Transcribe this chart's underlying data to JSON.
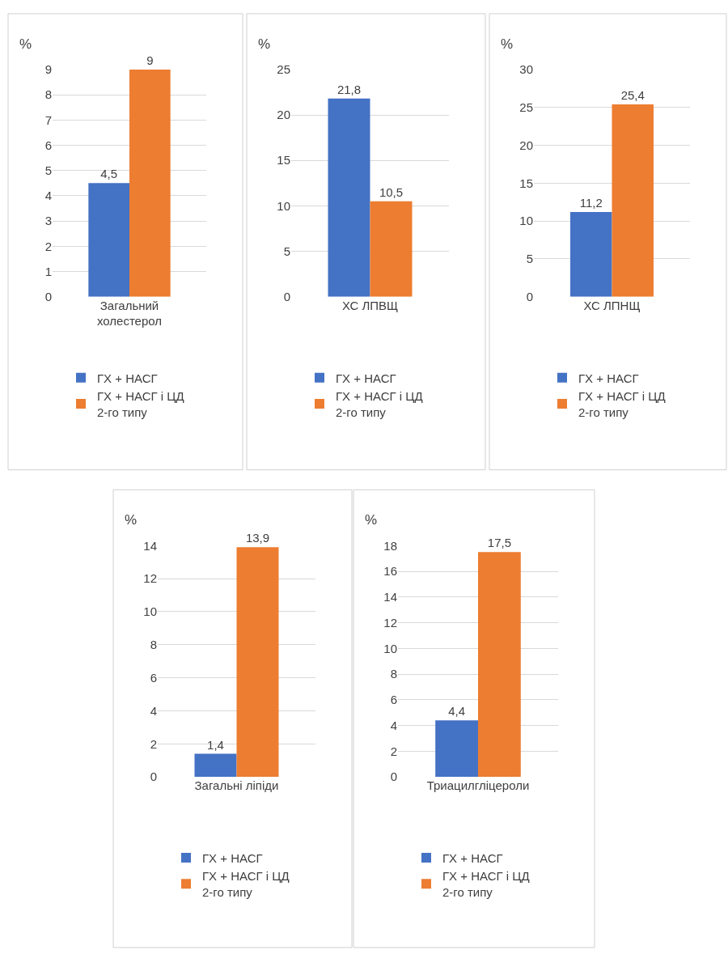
{
  "chart_data": [
    {
      "type": "bar",
      "categories": [
        "Загальний холестерол"
      ],
      "ylabel": "%",
      "ylim": [
        0,
        9
      ],
      "yticks": [
        0,
        1,
        2,
        3,
        4,
        5,
        6,
        7,
        8,
        9
      ],
      "grid": "y",
      "legend": "bottom",
      "series": [
        {
          "name": "ГХ + НАСГ",
          "color": "#4472c4",
          "values": [
            4.5
          ],
          "value_labels": [
            "4,5"
          ]
        },
        {
          "name": "ГХ + НАСГ і ЦД 2-го типу",
          "color": "#ed7d31",
          "values": [
            9
          ],
          "value_labels": [
            "9"
          ]
        }
      ]
    },
    {
      "type": "bar",
      "categories": [
        "ХС ЛПВЩ"
      ],
      "ylabel": "%",
      "ylim": [
        0,
        25
      ],
      "yticks": [
        0,
        5,
        10,
        15,
        20,
        25
      ],
      "grid": "y",
      "legend": "bottom",
      "series": [
        {
          "name": "ГХ + НАСГ",
          "color": "#4472c4",
          "values": [
            21.8
          ],
          "value_labels": [
            "21,8"
          ]
        },
        {
          "name": "ГХ + НАСГ і ЦД 2-го типу",
          "color": "#ed7d31",
          "values": [
            10.5
          ],
          "value_labels": [
            "10,5"
          ]
        }
      ]
    },
    {
      "type": "bar",
      "categories": [
        "ХС ЛПНЩ"
      ],
      "ylabel": "%",
      "ylim": [
        0,
        30
      ],
      "yticks": [
        0,
        5,
        10,
        15,
        20,
        25,
        30
      ],
      "grid": "y",
      "legend": "bottom",
      "series": [
        {
          "name": "ГХ + НАСГ",
          "color": "#4472c4",
          "values": [
            11.2
          ],
          "value_labels": [
            "11,2"
          ]
        },
        {
          "name": "ГХ + НАСГ і ЦД 2-го типу",
          "color": "#ed7d31",
          "values": [
            25.4
          ],
          "value_labels": [
            "25,4"
          ]
        }
      ]
    },
    {
      "type": "bar",
      "categories": [
        "Загальні ліпіди"
      ],
      "ylabel": "%",
      "ylim": [
        0,
        14
      ],
      "yticks": [
        0,
        2,
        4,
        6,
        8,
        10,
        12,
        14
      ],
      "grid": "y",
      "legend": "bottom",
      "series": [
        {
          "name": "ГХ + НАСГ",
          "color": "#4472c4",
          "values": [
            1.4
          ],
          "value_labels": [
            "1,4"
          ]
        },
        {
          "name": "ГХ + НАСГ і ЦД 2-го типу",
          "color": "#ed7d31",
          "values": [
            13.9
          ],
          "value_labels": [
            "13,9"
          ]
        }
      ]
    },
    {
      "type": "bar",
      "categories": [
        "Триацилгліцероли"
      ],
      "ylabel": "%",
      "ylim": [
        0,
        18
      ],
      "yticks": [
        0,
        2,
        4,
        6,
        8,
        10,
        12,
        14,
        16,
        18
      ],
      "grid": "y",
      "legend": "bottom",
      "series": [
        {
          "name": "ГХ + НАСГ",
          "color": "#4472c4",
          "values": [
            4.4
          ],
          "value_labels": [
            "4,4"
          ]
        },
        {
          "name": "ГХ + НАСГ і ЦД 2-го типу",
          "color": "#ed7d31",
          "values": [
            17.5
          ],
          "value_labels": [
            "17,5"
          ]
        }
      ]
    }
  ]
}
